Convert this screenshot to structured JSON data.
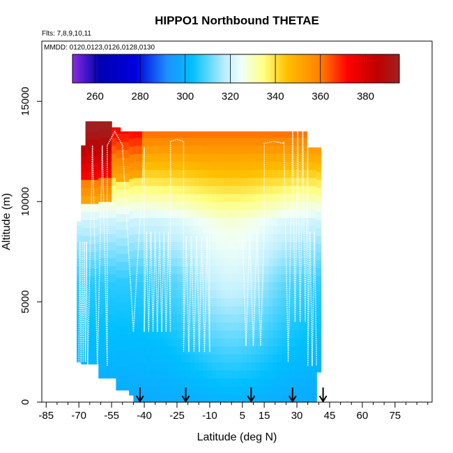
{
  "chart_data": {
    "type": "heatmap",
    "title": "HIPPO1 Northbound THETAE",
    "subtitle_flights": "Flts: 7,8,9,10,11",
    "subtitle_dates": "MMDD: 0120,0123,0126,0128,0130",
    "xlabel": "Latitude (deg N)",
    "ylabel": "Altitude (m)",
    "xlim": [
      -87,
      92
    ],
    "ylim": [
      0,
      18000
    ],
    "x_ticks": [
      -85,
      -70,
      -55,
      -40,
      -25,
      -10,
      5,
      15,
      30,
      45,
      60,
      75
    ],
    "x_tick_labels": [
      "-85",
      "-70",
      "-55",
      "-40",
      "-25",
      "-10",
      "5",
      "15",
      "30",
      "45",
      "60",
      "75"
    ],
    "x_minor_ticks": [
      -80,
      -75,
      -65,
      -60,
      -50,
      -45,
      -35,
      -30,
      -20,
      -15,
      -5,
      0,
      10,
      20,
      25,
      35,
      40,
      50,
      55,
      65,
      70,
      80,
      85,
      90
    ],
    "y_ticks": [
      0,
      5000,
      10000,
      15000
    ],
    "y_tick_labels": [
      "0",
      "5000",
      "10000",
      "15000"
    ],
    "colorbar": {
      "range": [
        250,
        395
      ],
      "ticks": [
        260,
        280,
        300,
        320,
        340,
        360,
        380
      ],
      "tick_labels": [
        "260",
        "280",
        "300",
        "320",
        "340",
        "360",
        "380"
      ],
      "stops": [
        {
          "value": 250,
          "color": "#8a2be2"
        },
        {
          "value": 262,
          "color": "#0000b0"
        },
        {
          "value": 278,
          "color": "#0000dd"
        },
        {
          "value": 292,
          "color": "#1e90ff"
        },
        {
          "value": 303,
          "color": "#00bfff"
        },
        {
          "value": 318,
          "color": "#bfefff"
        },
        {
          "value": 325,
          "color": "#f0fff8"
        },
        {
          "value": 335,
          "color": "#ffff80"
        },
        {
          "value": 345,
          "color": "#ffc000"
        },
        {
          "value": 360,
          "color": "#ff8000"
        },
        {
          "value": 372,
          "color": "#ff0000"
        },
        {
          "value": 385,
          "color": "#c00000"
        },
        {
          "value": 395,
          "color": "#a02020"
        }
      ]
    },
    "arrows_latitude": [
      -42,
      -21,
      9,
      28,
      42
    ],
    "grid": false,
    "legend": "top"
  }
}
